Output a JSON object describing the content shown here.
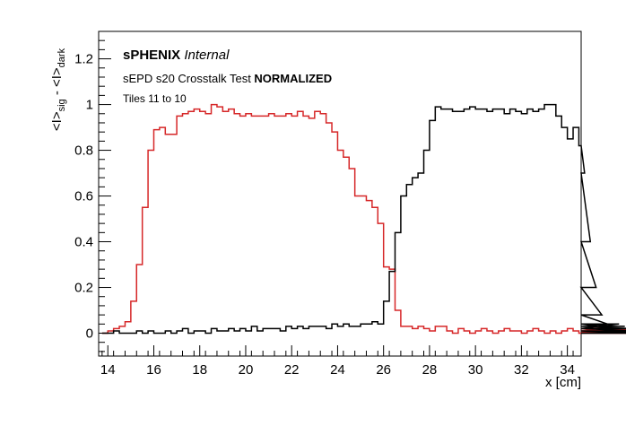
{
  "chart_data": {
    "type": "line",
    "step": true,
    "xlabel": "x [cm]",
    "ylabel": {
      "parts": [
        {
          "text": "<I>"
        },
        {
          "text": "sig",
          "sub": true
        },
        {
          "text": " - <I>"
        },
        {
          "text": "dark",
          "sub": true
        }
      ]
    },
    "xlim": [
      13.6,
      34.6
    ],
    "ylim": [
      -0.1,
      1.32
    ],
    "x_ticks": [
      14,
      16,
      18,
      20,
      22,
      24,
      26,
      28,
      30,
      32,
      34
    ],
    "y_ticks": [
      0,
      0.2,
      0.4,
      0.6,
      0.8,
      1,
      1.2
    ],
    "x_tick_labels": [
      "14",
      "16",
      "18",
      "20",
      "22",
      "24",
      "26",
      "28",
      "30",
      "32",
      "34"
    ],
    "y_tick_labels": [
      "0",
      "0.2",
      "0.4",
      "0.6",
      "0.8",
      "1",
      "1.2"
    ],
    "bin_width": 0.25,
    "bins_start": 13.75,
    "grid": false,
    "annotations": {
      "brand_bold": "sPHENIX",
      "brand_italic": " Internal",
      "test_plain": "sEPD s20 Crosstalk Test ",
      "test_bold": "NORMALIZED",
      "tiles": "Tiles 11 to 10"
    },
    "series": [
      {
        "color": "#d62728",
        "values": [
          0.0,
          0.01,
          0.02,
          0.03,
          0.05,
          0.14,
          0.3,
          0.55,
          0.8,
          0.89,
          0.9,
          0.87,
          0.87,
          0.95,
          0.96,
          0.97,
          0.98,
          0.97,
          0.96,
          1.0,
          0.99,
          0.97,
          0.98,
          0.96,
          0.95,
          0.96,
          0.95,
          0.95,
          0.95,
          0.96,
          0.95,
          0.95,
          0.96,
          0.95,
          0.97,
          0.95,
          0.94,
          0.97,
          0.96,
          0.92,
          0.88,
          0.8,
          0.77,
          0.72,
          0.6,
          0.6,
          0.58,
          0.55,
          0.48,
          0.29,
          0.28,
          0.1,
          0.03,
          0.03,
          0.02,
          0.03,
          0.02,
          0.01,
          0.03,
          0.03,
          0.01,
          0.0,
          0.02,
          0.01,
          0.0,
          0.01,
          0.02,
          0.01,
          0.0,
          0.01,
          0.02,
          0.01,
          0.01,
          0.0,
          0.01,
          0.02,
          0.01,
          0.0,
          0.01,
          0.0,
          0.01,
          0.02,
          0.01,
          0.0,
          0.01,
          0.01,
          0.01,
          0.0,
          0.02,
          0.0,
          0.01,
          0.0,
          0.01,
          0.0,
          0.01,
          0.02,
          0.01,
          0.0,
          0.02,
          0.01,
          0.0,
          0.01,
          0.0,
          0.01,
          0.0,
          0.01,
          0.01,
          0.0,
          0.01,
          0.02,
          0.01,
          0.01,
          0.02,
          0.01,
          0.01,
          0.0,
          0.0,
          0.01,
          0.0,
          0.02,
          0.01,
          0.01,
          0.02,
          0.0,
          0.01,
          0.0,
          0.01,
          0.01,
          0.0,
          0.01,
          0.0,
          0.01,
          0.0,
          0.01,
          0.0,
          0.0,
          0.02,
          0.0,
          0.01,
          0.0,
          0.01,
          0.0,
          0.01,
          0.0,
          0.01,
          0.0,
          0.01,
          0.0,
          0.01,
          0.0,
          0.01,
          0.0,
          0.01,
          0.0,
          0.01,
          0.0,
          0.0,
          0.0
        ]
      },
      {
        "color": "#000000",
        "values": [
          0.0,
          0.0,
          0.01,
          0.0,
          0.0,
          0.0,
          0.01,
          0.0,
          0.01,
          0.0,
          0.0,
          0.01,
          0.0,
          0.01,
          0.02,
          0.0,
          0.01,
          0.01,
          0.0,
          0.02,
          0.01,
          0.01,
          0.02,
          0.01,
          0.02,
          0.01,
          0.03,
          0.01,
          0.02,
          0.02,
          0.02,
          0.01,
          0.03,
          0.02,
          0.03,
          0.02,
          0.03,
          0.03,
          0.03,
          0.02,
          0.04,
          0.03,
          0.04,
          0.03,
          0.03,
          0.04,
          0.04,
          0.05,
          0.04,
          0.14,
          0.27,
          0.44,
          0.6,
          0.65,
          0.68,
          0.7,
          0.8,
          0.93,
          0.99,
          0.98,
          0.98,
          0.97,
          0.97,
          0.98,
          0.99,
          0.98,
          0.98,
          0.97,
          0.98,
          0.98,
          0.96,
          0.98,
          0.97,
          0.96,
          0.98,
          0.97,
          0.98,
          1.0,
          1.0,
          0.95,
          0.9,
          0.85,
          0.9,
          0.82,
          0.7,
          0.4,
          0.2,
          0.08,
          0.04,
          0.02,
          0.04,
          0.03,
          0.02,
          0.01,
          0.0,
          0.01,
          0.0,
          0.0,
          0.01,
          0.0,
          0.0,
          0.0,
          0.01,
          0.0,
          0.0,
          0.0,
          0.0,
          0.01,
          0.0,
          0.0,
          0.0,
          0.0,
          0.0,
          0.0,
          0.0,
          0.0,
          0.0,
          0.0,
          0.0,
          0.0,
          0.0,
          0.0,
          0.0,
          0.0,
          0.0,
          0.0,
          0.0,
          0.0,
          0.0,
          0.0,
          0.0,
          0.0,
          0.0,
          0.0,
          0.0,
          0.0,
          0.0,
          0.0,
          0.0,
          0.0,
          0.0,
          0.0,
          0.0,
          0.0,
          0.0,
          0.0,
          0.0,
          0.0,
          0.0,
          0.0,
          0.0,
          0.0,
          0.0,
          0.0,
          0.0,
          0.0,
          0.0,
          0.0
        ]
      }
    ]
  }
}
